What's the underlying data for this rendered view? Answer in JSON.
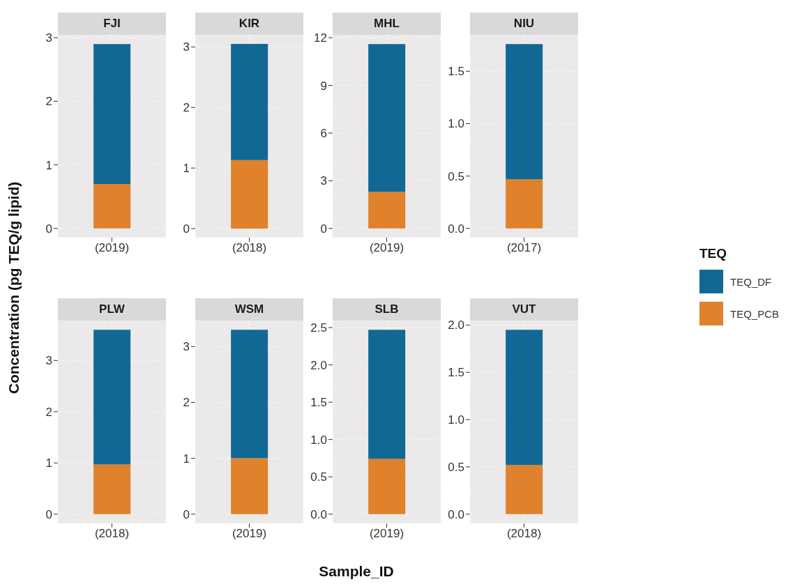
{
  "chart_data": [
    {
      "type": "bar",
      "title": "FJI",
      "ylabel": "Concentration (pg TEQ/g lipid)",
      "legend_title": "TEQ",
      "legend": "right",
      "grid": true,
      "stacked": true,
      "categories": [
        "(2019)"
      ],
      "ylim": [
        -0.145,
        3.045
      ],
      "yticks": [
        0,
        1,
        2,
        3
      ],
      "series": [
        {
          "name": "TEQ_PCB",
          "color": "#e0812b",
          "values": [
            0.7
          ]
        },
        {
          "name": "TEQ_DF",
          "color": "#116895",
          "values": [
            2.2
          ]
        }
      ]
    },
    {
      "type": "bar",
      "title": "KIR",
      "grid": true,
      "stacked": true,
      "categories": [
        "(2018)"
      ],
      "ylim": [
        -0.15,
        3.2
      ],
      "yticks": [
        0,
        1,
        2,
        3
      ],
      "series": [
        {
          "color": "#e0812b",
          "values": [
            1.13
          ]
        },
        {
          "color": "#116895",
          "values": [
            1.92
          ]
        }
      ]
    },
    {
      "type": "bar",
      "title": "MHL",
      "grid": true,
      "stacked": true,
      "categories": [
        "(2019)"
      ],
      "ylim": [
        -0.58,
        12.18
      ],
      "yticks": [
        0,
        3,
        6,
        9,
        12
      ],
      "series": [
        {
          "color": "#e0812b",
          "values": [
            2.3
          ]
        },
        {
          "color": "#116895",
          "values": [
            9.3
          ]
        }
      ]
    },
    {
      "type": "bar",
      "title": "NIU",
      "grid": true,
      "stacked": true,
      "categories": [
        "(2017)"
      ],
      "ylim": [
        -0.088,
        1.848
      ],
      "yticks": [
        {
          "value": 0,
          "label": "0.0"
        },
        0.5,
        {
          "value": 1,
          "label": "1.0"
        },
        1.5
      ],
      "series": [
        {
          "color": "#e0812b",
          "values": [
            0.47
          ]
        },
        {
          "color": "#116895",
          "values": [
            1.29
          ]
        }
      ]
    },
    {
      "type": "bar",
      "title": "PLW",
      "grid": true,
      "stacked": true,
      "categories": [
        "(2018)"
      ],
      "ylim": [
        -0.18,
        3.78
      ],
      "yticks": [
        0,
        1,
        2,
        3
      ],
      "series": [
        {
          "color": "#e0812b",
          "values": [
            0.97
          ]
        },
        {
          "color": "#116895",
          "values": [
            2.63
          ]
        }
      ]
    },
    {
      "type": "bar",
      "title": "WSM",
      "grid": true,
      "stacked": true,
      "categories": [
        "(2019)"
      ],
      "ylim": [
        -0.165,
        3.465
      ],
      "yticks": [
        0,
        1,
        2,
        3
      ],
      "series": [
        {
          "color": "#e0812b",
          "values": [
            1.0
          ]
        },
        {
          "color": "#116895",
          "values": [
            2.3
          ]
        }
      ]
    },
    {
      "type": "bar",
      "title": "SLB",
      "xlabel": "Sample_ID",
      "grid": true,
      "stacked": true,
      "categories": [
        "(2019)"
      ],
      "ylim": [
        -0.124,
        2.594
      ],
      "yticks": [
        {
          "value": 0,
          "label": "0.0"
        },
        0.5,
        {
          "value": 1,
          "label": "1.0"
        },
        1.5,
        {
          "value": 2,
          "label": "2.0"
        },
        2.5
      ],
      "series": [
        {
          "color": "#e0812b",
          "values": [
            0.74
          ]
        },
        {
          "color": "#116895",
          "values": [
            1.73
          ]
        }
      ]
    },
    {
      "type": "bar",
      "title": "VUT",
      "grid": true,
      "stacked": true,
      "categories": [
        "(2018)"
      ],
      "ylim": [
        -0.0975,
        2.0475
      ],
      "yticks": [
        {
          "value": 0,
          "label": "0.0"
        },
        0.5,
        {
          "value": 1,
          "label": "1.0"
        },
        1.5,
        {
          "value": 2,
          "label": "2.0"
        }
      ],
      "series": [
        {
          "color": "#e0812b",
          "values": [
            0.52
          ]
        },
        {
          "color": "#116895",
          "values": [
            1.43
          ]
        }
      ]
    }
  ]
}
